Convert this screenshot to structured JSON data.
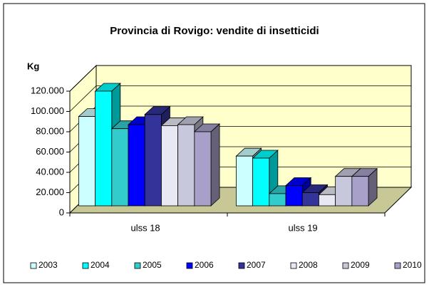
{
  "chart_data": {
    "type": "bar3d",
    "title": "Provincia di Rovigo: vendite di insetticidi",
    "y_label": "Kg",
    "categories": [
      "ulss 18",
      "ulss 19"
    ],
    "series": [
      {
        "name": "2003",
        "color": "#ccffff",
        "values": [
          88000,
          49000
        ]
      },
      {
        "name": "2004",
        "color": "#00ffff",
        "values": [
          113000,
          47000
        ]
      },
      {
        "name": "2005",
        "color": "#33cccc",
        "values": [
          76000,
          12000
        ]
      },
      {
        "name": "2006",
        "color": "#0000ff",
        "values": [
          80000,
          20000
        ]
      },
      {
        "name": "2007",
        "color": "#333399",
        "values": [
          90000,
          13000
        ]
      },
      {
        "name": "2008",
        "color": "#e8e8f4",
        "values": [
          79000,
          11000
        ]
      },
      {
        "name": "2009",
        "color": "#c8c8dc",
        "values": [
          80000,
          29000
        ]
      },
      {
        "name": "2010",
        "color": "#a8a0c8",
        "values": [
          73000,
          29000
        ]
      }
    ],
    "ylim": [
      0,
      120000
    ],
    "yticks": [
      0,
      {
        "value": 20000,
        "label": "20.000"
      },
      {
        "value": 40000,
        "label": "40.000"
      },
      {
        "value": 60000,
        "label": "60.000"
      },
      {
        "value": 80000,
        "label": "80.000"
      },
      {
        "value": 100000,
        "label": "100.000"
      },
      {
        "value": 120000,
        "label": "120.000"
      }
    ],
    "grid": true,
    "legend": "bottom"
  }
}
